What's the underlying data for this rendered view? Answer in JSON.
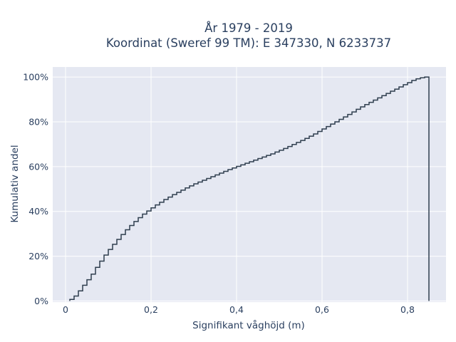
{
  "chart_data": {
    "type": "line",
    "subtype": "cumulative-step",
    "title": [
      "År 1979 - 2019",
      "Koordinat (Sweref 99 TM): E 347330, N 6233737"
    ],
    "xlabel": "Signifikant våghöjd (m)",
    "ylabel": "Kumulativ andel",
    "xlim": [
      -0.03,
      0.89
    ],
    "ylim": [
      -0.005,
      1.045
    ],
    "xticks": [
      0,
      0.2,
      0.4,
      0.6,
      0.8
    ],
    "xtick_labels": [
      "0",
      "0,2",
      "0,4",
      "0,6",
      "0,8"
    ],
    "yticks": [
      0,
      0.2,
      0.4,
      0.6,
      0.8,
      1.0
    ],
    "ytick_labels": [
      "0%",
      "20%",
      "40%",
      "60%",
      "80%",
      "100%"
    ],
    "grid": true,
    "background": "#e5e8f2",
    "grid_color": "#ffffff",
    "line_color": "#2f3e4e",
    "x_end": 0.85,
    "series": [
      {
        "x": [
          0.01,
          0.02,
          0.03,
          0.04,
          0.05,
          0.06,
          0.07,
          0.08,
          0.09,
          0.1,
          0.11,
          0.12,
          0.13,
          0.14,
          0.15,
          0.16,
          0.17,
          0.18,
          0.19,
          0.2,
          0.21,
          0.22,
          0.23,
          0.24,
          0.25,
          0.26,
          0.27,
          0.28,
          0.29,
          0.3,
          0.31,
          0.32,
          0.33,
          0.34,
          0.35,
          0.36,
          0.37,
          0.38,
          0.39,
          0.4,
          0.41,
          0.42,
          0.43,
          0.44,
          0.45,
          0.46,
          0.47,
          0.48,
          0.49,
          0.5,
          0.51,
          0.52,
          0.53,
          0.54,
          0.55,
          0.56,
          0.57,
          0.58,
          0.59,
          0.6,
          0.61,
          0.62,
          0.63,
          0.64,
          0.65,
          0.66,
          0.67,
          0.68,
          0.69,
          0.7,
          0.71,
          0.72,
          0.73,
          0.74,
          0.75,
          0.76,
          0.77,
          0.78,
          0.79,
          0.8,
          0.81,
          0.82,
          0.83,
          0.84
        ],
        "y": [
          0.007,
          0.022,
          0.045,
          0.07,
          0.095,
          0.12,
          0.15,
          0.178,
          0.205,
          0.23,
          0.253,
          0.275,
          0.297,
          0.318,
          0.337,
          0.355,
          0.372,
          0.388,
          0.402,
          0.416,
          0.429,
          0.441,
          0.453,
          0.464,
          0.475,
          0.485,
          0.495,
          0.505,
          0.514,
          0.523,
          0.531,
          0.539,
          0.547,
          0.555,
          0.563,
          0.571,
          0.579,
          0.587,
          0.594,
          0.601,
          0.608,
          0.615,
          0.622,
          0.629,
          0.636,
          0.643,
          0.65,
          0.657,
          0.665,
          0.673,
          0.681,
          0.69,
          0.699,
          0.708,
          0.717,
          0.726,
          0.736,
          0.746,
          0.757,
          0.768,
          0.779,
          0.79,
          0.8,
          0.811,
          0.822,
          0.833,
          0.844,
          0.856,
          0.867,
          0.877,
          0.887,
          0.897,
          0.907,
          0.917,
          0.927,
          0.937,
          0.946,
          0.956,
          0.966,
          0.975,
          0.985,
          0.992,
          0.997,
          1.0
        ]
      }
    ]
  }
}
